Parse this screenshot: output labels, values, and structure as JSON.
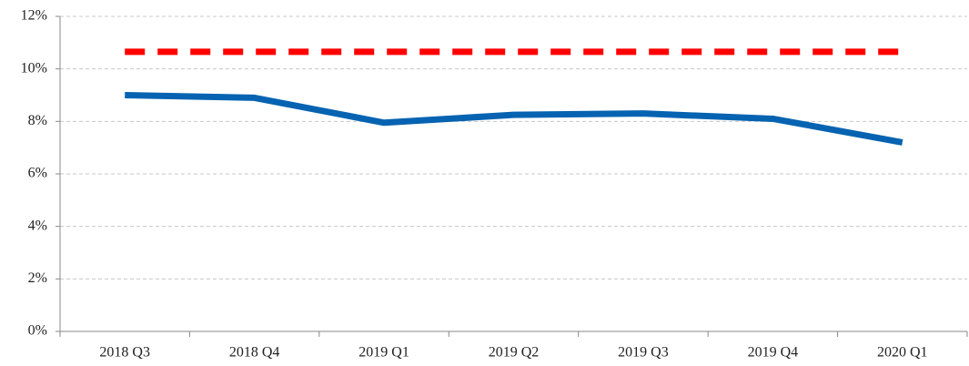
{
  "chart_data": {
    "type": "line",
    "categories": [
      "2018 Q3",
      "2018 Q4",
      "2019 Q1",
      "2019 Q2",
      "2019 Q3",
      "2019 Q4",
      "2020 Q1"
    ],
    "series": [
      {
        "color": "#0563b1",
        "line_style": "solid",
        "values": [
          9.0,
          8.9,
          7.95,
          8.25,
          8.3,
          8.1,
          7.2
        ]
      },
      {
        "color": "#ff0000",
        "line_style": "dashed",
        "values": [
          10.65,
          10.65,
          10.65,
          10.65,
          10.65,
          10.65,
          10.65
        ]
      }
    ],
    "ylim": [
      0,
      12
    ],
    "yticks": [
      {
        "value": 0,
        "label": "0%"
      },
      {
        "value": 2,
        "label": "2%"
      },
      {
        "value": 4,
        "label": "4%"
      },
      {
        "value": 6,
        "label": "6%"
      },
      {
        "value": 8,
        "label": "8%"
      },
      {
        "value": 10,
        "label": "10%"
      },
      {
        "value": 12,
        "label": "12%"
      }
    ],
    "grid": true
  }
}
